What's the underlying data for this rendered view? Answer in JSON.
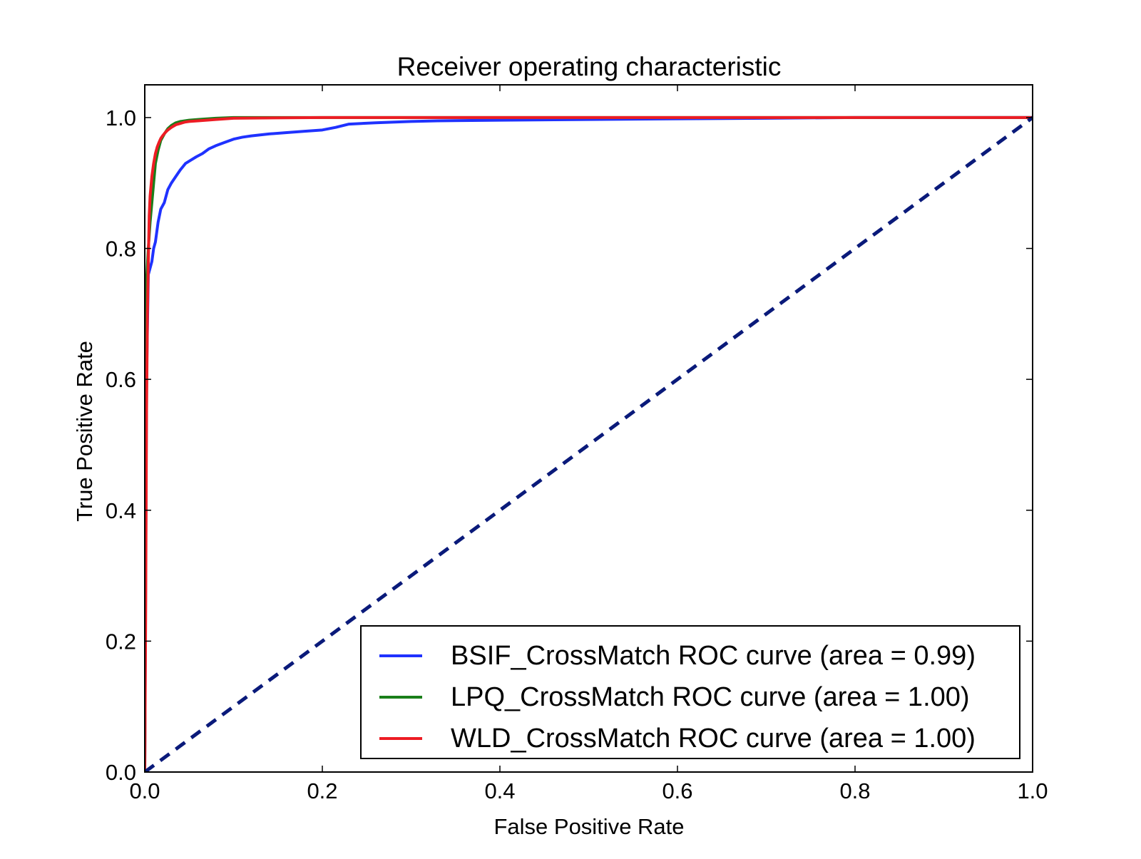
{
  "chart_data": {
    "type": "line",
    "title": "Receiver operating characteristic",
    "xlabel": "False Positive Rate",
    "ylabel": "True Positive Rate",
    "xlim": [
      0.0,
      1.0
    ],
    "ylim": [
      0.0,
      1.05
    ],
    "xticks": [
      0.0,
      0.2,
      0.4,
      0.6,
      0.8,
      1.0
    ],
    "xtick_labels": [
      "0.0",
      "0.2",
      "0.4",
      "0.6",
      "0.8",
      "1.0"
    ],
    "yticks": [
      0.0,
      0.2,
      0.4,
      0.6,
      0.8,
      1.0
    ],
    "ytick_labels": [
      "0.0",
      "0.2",
      "0.4",
      "0.6",
      "0.8",
      "1.0"
    ],
    "grid": false,
    "legend_position": "lower-right",
    "series": [
      {
        "name": "BSIF_CrossMatch ROC curve (area = 0.99)",
        "color": "#1f32ff",
        "style": "solid",
        "x": [
          0.0,
          0.002,
          0.004,
          0.006,
          0.008,
          0.01,
          0.012,
          0.015,
          0.018,
          0.022,
          0.026,
          0.03,
          0.035,
          0.04,
          0.046,
          0.052,
          0.058,
          0.065,
          0.072,
          0.08,
          0.09,
          0.1,
          0.11,
          0.12,
          0.14,
          0.16,
          0.18,
          0.2,
          0.215,
          0.23,
          0.26,
          0.3,
          0.33,
          0.4,
          0.5,
          0.59,
          0.7,
          0.8,
          0.9,
          1.0
        ],
        "y": [
          0.0,
          0.6,
          0.76,
          0.77,
          0.78,
          0.8,
          0.81,
          0.84,
          0.86,
          0.87,
          0.89,
          0.9,
          0.91,
          0.92,
          0.93,
          0.935,
          0.94,
          0.945,
          0.952,
          0.957,
          0.962,
          0.967,
          0.97,
          0.972,
          0.975,
          0.977,
          0.979,
          0.981,
          0.985,
          0.99,
          0.992,
          0.994,
          0.995,
          0.996,
          0.997,
          0.998,
          0.999,
          1.0,
          1.0,
          1.0
        ]
      },
      {
        "name": "LPQ_CrossMatch ROC curve (area = 1.00)",
        "color": "#1a7f1a",
        "style": "solid",
        "x": [
          0.0,
          0.002,
          0.004,
          0.006,
          0.008,
          0.01,
          0.012,
          0.015,
          0.018,
          0.022,
          0.026,
          0.03,
          0.035,
          0.04,
          0.05,
          0.06,
          0.08,
          0.1,
          0.2,
          0.5,
          1.0
        ],
        "y": [
          0.0,
          0.75,
          0.8,
          0.84,
          0.87,
          0.9,
          0.93,
          0.95,
          0.965,
          0.975,
          0.983,
          0.988,
          0.992,
          0.994,
          0.996,
          0.997,
          0.999,
          1.0,
          1.0,
          1.0,
          1.0
        ]
      },
      {
        "name": "WLD_CrossMatch ROC curve (area = 1.00)",
        "color": "#ed1c24",
        "style": "solid",
        "x": [
          0.0,
          0.001,
          0.002,
          0.003,
          0.004,
          0.005,
          0.006,
          0.008,
          0.01,
          0.012,
          0.014,
          0.016,
          0.018,
          0.02,
          0.023,
          0.026,
          0.03,
          0.035,
          0.04,
          0.045,
          0.05,
          0.06,
          0.08,
          0.1,
          0.2,
          0.5,
          1.0
        ],
        "y": [
          0.0,
          0.24,
          0.55,
          0.7,
          0.78,
          0.85,
          0.88,
          0.91,
          0.93,
          0.945,
          0.955,
          0.962,
          0.968,
          0.972,
          0.977,
          0.981,
          0.985,
          0.989,
          0.991,
          0.993,
          0.994,
          0.995,
          0.997,
          0.999,
          1.0,
          1.0,
          1.0
        ]
      },
      {
        "name": "",
        "color": "#0a1a7a",
        "style": "dashed",
        "x": [
          0.0,
          1.0
        ],
        "y": [
          0.0,
          1.0
        ]
      }
    ],
    "legend_entries": [
      "BSIF_CrossMatch ROC curve (area = 0.99)",
      "LPQ_CrossMatch ROC curve (area = 1.00)",
      "WLD_CrossMatch ROC curve (area = 1.00)"
    ]
  }
}
